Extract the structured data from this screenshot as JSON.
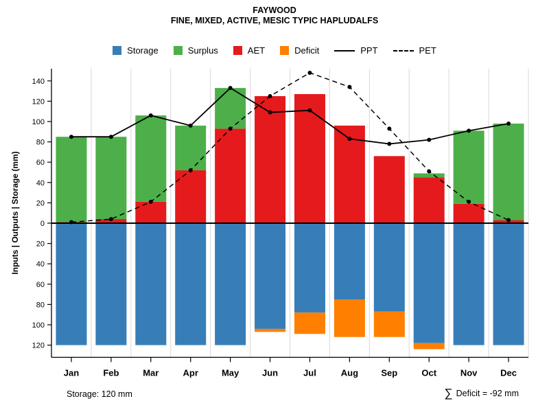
{
  "title": "FAYWOOD",
  "subtitle": "FINE, MIXED, ACTIVE, MESIC TYPIC HAPLUDALFS",
  "annotations": {
    "storage": "Storage: 120 mm",
    "sigma": "∑",
    "deficit": "Deficit = -92 mm"
  },
  "legend": [
    {
      "label": "Storage",
      "swatch": "square",
      "color": "#377EB8"
    },
    {
      "label": "Surplus",
      "swatch": "square",
      "color": "#4DAF4A"
    },
    {
      "label": "AET",
      "swatch": "square",
      "color": "#E41A1C"
    },
    {
      "label": "Deficit",
      "swatch": "square",
      "color": "#FF7F00"
    },
    {
      "label": "PPT",
      "swatch": "line",
      "color": "#000000"
    },
    {
      "label": "PET",
      "swatch": "dashed",
      "color": "#000000"
    }
  ],
  "colors": {
    "storage": "#377EB8",
    "surplus": "#4DAF4A",
    "aet": "#E41A1C",
    "deficit": "#FF7F00",
    "line": "#000000",
    "grid": "#D8D8D8"
  },
  "chart_data": {
    "type": "bar",
    "subtype": "monthly water balance: stacked bars above/below zero with PPT/PET line overlays",
    "categories": [
      "Jan",
      "Feb",
      "Mar",
      "Apr",
      "May",
      "Jun",
      "Jul",
      "Aug",
      "Sep",
      "Oct",
      "Nov",
      "Dec"
    ],
    "series": [
      {
        "name": "AET",
        "type": "bar",
        "direction": "up",
        "color": "#E41A1C",
        "values": [
          1,
          4,
          21,
          52,
          93,
          125,
          127,
          96,
          66,
          45,
          19,
          3
        ]
      },
      {
        "name": "Surplus",
        "type": "bar",
        "direction": "up",
        "stack_on": "AET",
        "color": "#4DAF4A",
        "values": [
          84,
          81,
          85,
          44,
          40,
          0,
          0,
          0,
          0,
          4,
          72,
          95
        ]
      },
      {
        "name": "Storage",
        "type": "bar",
        "direction": "down",
        "color": "#377EB8",
        "values": [
          120,
          120,
          120,
          120,
          120,
          104,
          88,
          75,
          87,
          118,
          120,
          120
        ]
      },
      {
        "name": "Deficit",
        "type": "bar",
        "direction": "down",
        "stack_on": "Storage",
        "color": "#FF7F00",
        "values": [
          0,
          0,
          0,
          0,
          0,
          3,
          21,
          37,
          25,
          6,
          0,
          0
        ]
      },
      {
        "name": "PPT",
        "type": "line",
        "style": "solid",
        "color": "#000000",
        "values": [
          85,
          85,
          106,
          96,
          133,
          109,
          111,
          83,
          78,
          82,
          91,
          98
        ]
      },
      {
        "name": "PET",
        "type": "line",
        "style": "dashed",
        "color": "#000000",
        "values": [
          1,
          4,
          21,
          52,
          93,
          125,
          148,
          134,
          93,
          51,
          21,
          3
        ]
      }
    ],
    "title": "FAYWOOD",
    "xlabel": "",
    "ylabel": "Inputs | Outputs | Storage  (mm)",
    "ylim": [
      -132,
      152
    ],
    "yticks_up": [
      0,
      20,
      40,
      60,
      80,
      100,
      120,
      140
    ],
    "yticks_down": [
      20,
      40,
      60,
      80,
      100,
      120
    ],
    "grid": "vertical",
    "legend_position": "top"
  }
}
